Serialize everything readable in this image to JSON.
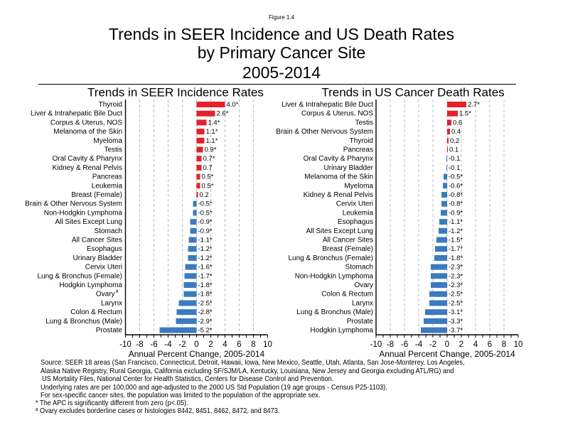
{
  "figure_label": "Figure 1.4",
  "title_lines": [
    "Trends in SEER Incidence and US Death Rates",
    "by Primary Cancer Site",
    "2005-2014"
  ],
  "chart_data": [
    {
      "type": "bar",
      "orientation": "horizontal",
      "title": "Trends in SEER Incidence Rates",
      "xlabel": "Annual Percent Change, 2005-2014",
      "ylabel": "",
      "xlim": [
        -10,
        10
      ],
      "xticks": [
        -10,
        -8,
        -6,
        -4,
        -2,
        0,
        2,
        4,
        6,
        8,
        10
      ],
      "xtick_labels": [
        "-10",
        "-8",
        "-6",
        "-4",
        "-2",
        "0",
        "2",
        "4",
        "6",
        "8",
        "10"
      ],
      "grid": true,
      "colors": {
        "increase": "#e3212b",
        "decrease": "#3a7bbf"
      },
      "categories": [
        "Thyroid",
        "Liver & Intrahepatic Bile Duct",
        "Corpus & Uterus, NOS",
        "Melanoma of the Skin",
        "Myeloma",
        "Testis",
        "Oral Cavity & Pharynx",
        "Kidney & Renal Pelvis",
        "Pancreas",
        "Leukemia",
        "Breast (Female)",
        "Brain & Other Nervous System",
        "Non-Hodgkin Lymphoma",
        "All Sites Except Lung",
        "Stomach",
        "All Cancer Sites",
        "Esophagus",
        "Urinary Bladder",
        "Cervix Uteri",
        "Lung & Bronchus (Female)",
        "Hodgkin Lymphoma",
        "Ovary",
        "Larynx",
        "Colon & Rectum",
        "Lung & Bronchus (Male)",
        "Prostate"
      ],
      "category_superscripts": {
        "21": "a"
      },
      "values": [
        4.0,
        2.6,
        1.4,
        1.1,
        1.1,
        0.9,
        0.7,
        0.7,
        0.5,
        0.5,
        0.2,
        -0.5,
        -0.5,
        -0.9,
        -0.9,
        -1.1,
        -1.2,
        -1.2,
        -1.6,
        -1.7,
        -1.8,
        -1.8,
        -2.5,
        -2.8,
        -2.9,
        -5.2
      ],
      "significant": [
        true,
        true,
        true,
        true,
        true,
        true,
        true,
        false,
        true,
        true,
        false,
        true,
        true,
        true,
        true,
        true,
        true,
        true,
        true,
        true,
        true,
        true,
        true,
        true,
        true,
        true
      ],
      "value_labels": [
        "4.0*",
        "2.6*",
        "1.4*",
        "1.1*",
        "1.1*",
        "0.9*",
        "0.7*",
        "0.7",
        "0.5*",
        "0.5*",
        "0.2",
        "-0.5*",
        "-0.5*",
        "-0.9*",
        "-0.9*",
        "-1.1*",
        "-1.2*",
        "-1.2*",
        "-1.6*",
        "-1.7*",
        "-1.8*",
        "-1.8*",
        "-2.5*",
        "-2.8*",
        "-2.9*",
        "-5.2*"
      ]
    },
    {
      "type": "bar",
      "orientation": "horizontal",
      "title": "Trends in US Cancer Death Rates",
      "xlabel": "Annual Percent Change, 2005-2014",
      "ylabel": "",
      "xlim": [
        -10,
        10
      ],
      "xticks": [
        -10,
        -8,
        -6,
        -4,
        -2,
        0,
        2,
        4,
        6,
        8,
        10
      ],
      "xtick_labels": [
        "-10",
        "-8",
        "-6",
        "-4",
        "-2",
        "0",
        "2",
        "4",
        "6",
        "8",
        "10"
      ],
      "grid": true,
      "colors": {
        "increase": "#e3212b",
        "decrease": "#3a7bbf"
      },
      "categories": [
        "Liver & Intrahepatic Bile Duct",
        "Corpus & Uterus, NOS",
        "Testis",
        "Brain & Other Nervous System",
        "Thyroid",
        "Pancreas",
        "Oral Cavity & Pharynx",
        "Urinary Bladder",
        "Melanoma of the Skin",
        "Myeloma",
        "Kidney & Renal Pelvis",
        "Cervix Uteri",
        "Leukemia",
        "Esophagus",
        "All Sites Except Lung",
        "All Cancer Sites",
        "Breast (Female)",
        "Lung & Bronchus (Female)",
        "Stomach",
        "Non-Hodgkin Lymphoma",
        "Ovary",
        "Colon & Rectum",
        "Larynx",
        "Lung & Bronchus (Male)",
        "Prostate",
        "Hodgkin Lymphoma"
      ],
      "category_superscripts": {},
      "values": [
        2.7,
        1.5,
        0.6,
        0.4,
        0.2,
        0.1,
        -0.1,
        -0.1,
        -0.5,
        -0.6,
        -0.8,
        -0.8,
        -0.9,
        -1.1,
        -1.2,
        -1.5,
        -1.7,
        -1.8,
        -2.3,
        -2.3,
        -2.3,
        -2.5,
        -2.5,
        -3.1,
        -3.3,
        -3.7
      ],
      "significant": [
        true,
        true,
        false,
        false,
        false,
        false,
        false,
        false,
        true,
        true,
        true,
        true,
        true,
        true,
        true,
        true,
        true,
        true,
        true,
        true,
        true,
        true,
        true,
        true,
        true,
        true
      ],
      "value_labels": [
        "2.7*",
        "1.5*",
        "0.6",
        "0.4",
        "0.2",
        "0.1",
        "-0.1",
        "-0.1",
        "-0.5*",
        "-0.6*",
        "-0.8*",
        "-0.8*",
        "-0.9*",
        "-1.1*",
        "-1.2*",
        "-1.5*",
        "-1.7*",
        "-1.8*",
        "-2.3*",
        "-2.3*",
        "-2.3*",
        "-2.5*",
        "-2.5*",
        "-3.1*",
        "-3.3*",
        "-3.7*"
      ]
    }
  ],
  "footnotes": {
    "source_lines": [
      "Source: SEER 18 areas (San Francisco, Connecticut, Detroit, Hawaii, Iowa, New Mexico, Seattle, Utah, Atlanta, San Jose-Monterey, Los Angeles,",
      "Alaska Native Registry, Rural Georgia, California excluding SF/SJM/LA, Kentucky, Louisiana, New Jersey and Georgia excluding ATL/RG) and",
      "US Mortality Files, National Center for Health Statistics, Centers for Disease Control and Prevention.",
      "Underlying rates are per 100,000 and age-adjusted to the 2000 US Std Population (19 age groups - Census P25-1103).",
      "For sex-specific cancer sites, the population was limited to the population of the appropriate sex."
    ],
    "notes": [
      {
        "marker": "*",
        "text": "The APC is significantly different from zero (p<.05)."
      },
      {
        "marker": "a",
        "text": "Ovary excludes borderline cases or histologies 8442, 8451, 8462, 8472, and 8473."
      }
    ]
  }
}
